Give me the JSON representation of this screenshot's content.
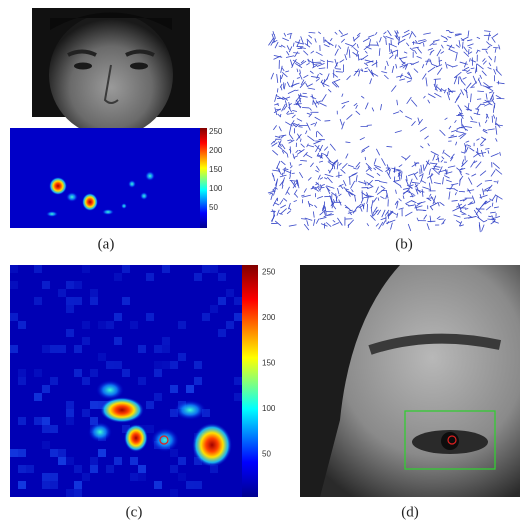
{
  "figure": {
    "panels": [
      {
        "label": "(a)",
        "colorbar_ticks": [
          250,
          200,
          150,
          100,
          50
        ]
      },
      {
        "label": "(b)"
      },
      {
        "label": "(c)",
        "colorbar_ticks": [
          250,
          200,
          150,
          100,
          50
        ]
      },
      {
        "label": "(d)"
      }
    ]
  }
}
